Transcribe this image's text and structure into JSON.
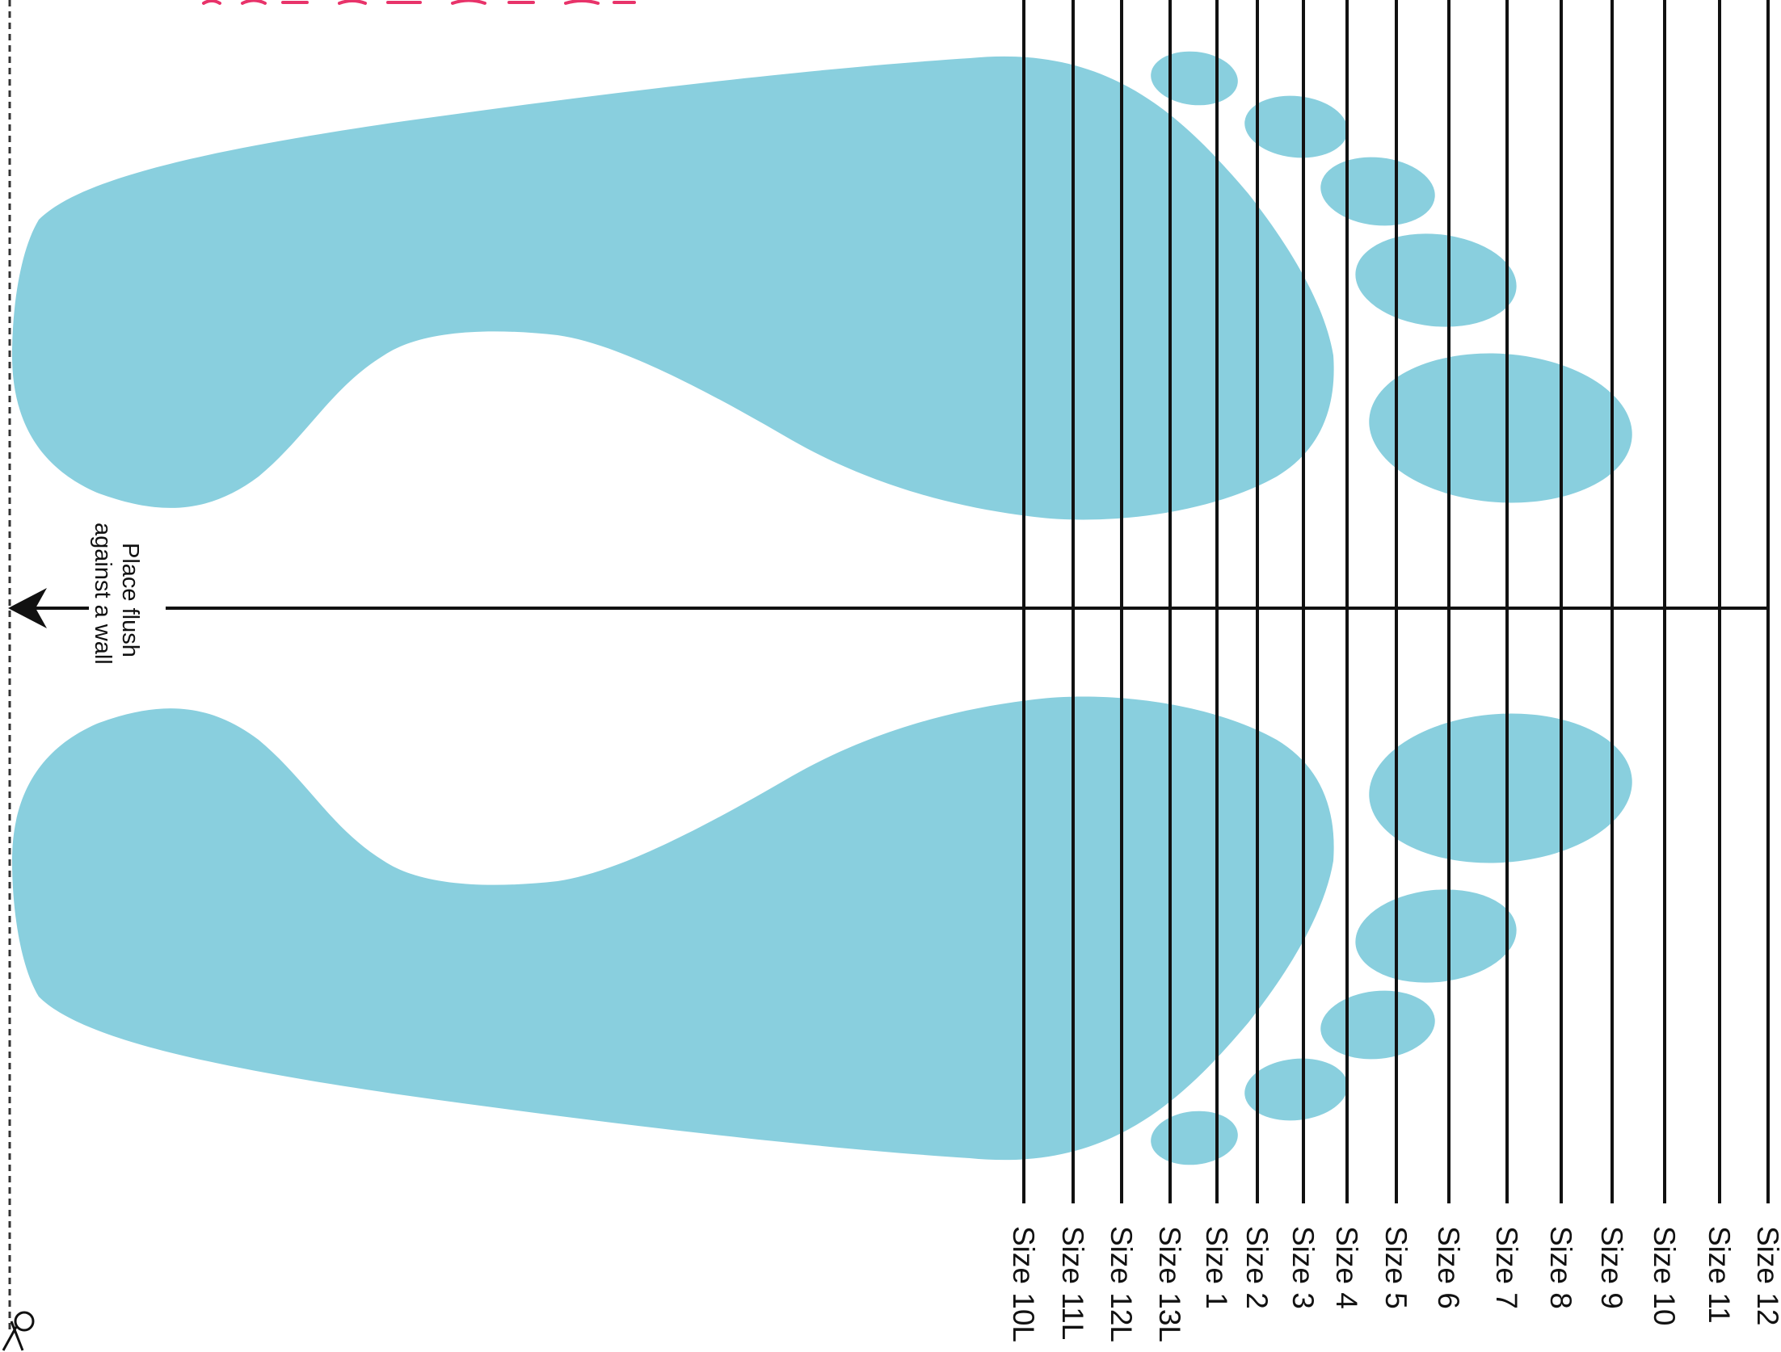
{
  "colors": {
    "foot": "#89CFDE",
    "line": "#111111",
    "top_note": "#E8336A",
    "background": "#FFFFFF"
  },
  "instruction": {
    "line1": "Place flush",
    "line2": "against a wall"
  },
  "sizes": [
    "Size 10L",
    "Size 11L",
    "Size 12L",
    "Size 13L",
    "Size 1",
    "Size 2",
    "Size 3",
    "Size 4",
    "Size 5",
    "Size 6",
    "Size 7",
    "Size 8",
    "Size 9",
    "Size 10",
    "Size 11",
    "Size 12"
  ],
  "icons": {
    "arrow": "arrow-left-icon",
    "scissors": "scissors-icon"
  }
}
